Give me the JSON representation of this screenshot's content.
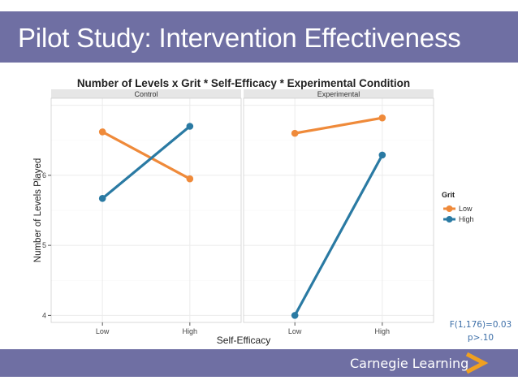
{
  "slide": {
    "title": "Pilot Study: Intervention Effectiveness",
    "stats_line1": "F(1,176)=0.03",
    "stats_line2": "p>.10",
    "brand": "Carnegie Learning",
    "colors": {
      "header": "#6f6fa3",
      "low": "#ef8a3a",
      "high": "#2a7aa3",
      "stats": "#3d6fa8",
      "brand_mark": "#f0a020"
    }
  },
  "chart_data": {
    "type": "line",
    "title": "Number of Levels x Grit * Self-Efficacy * Experimental Condition",
    "xlabel": "Self-Efficacy",
    "ylabel": "Number of Levels Played",
    "categories": [
      "Low",
      "High"
    ],
    "ylim": [
      3.9,
      7.1
    ],
    "yticks": [
      4,
      5,
      6
    ],
    "ytick_labels": [
      "4",
      "5",
      "6"
    ],
    "legend": {
      "title": "Grit",
      "position": "right"
    },
    "panels": [
      {
        "label": "Control",
        "series": [
          {
            "name": "Low",
            "values": [
              6.62,
              5.95
            ]
          },
          {
            "name": "High",
            "values": [
              5.67,
              6.7
            ]
          }
        ]
      },
      {
        "label": "Experimental",
        "series": [
          {
            "name": "Low",
            "values": [
              6.6,
              6.82
            ]
          },
          {
            "name": "High",
            "values": [
              4.0,
              6.29
            ]
          }
        ]
      }
    ]
  }
}
